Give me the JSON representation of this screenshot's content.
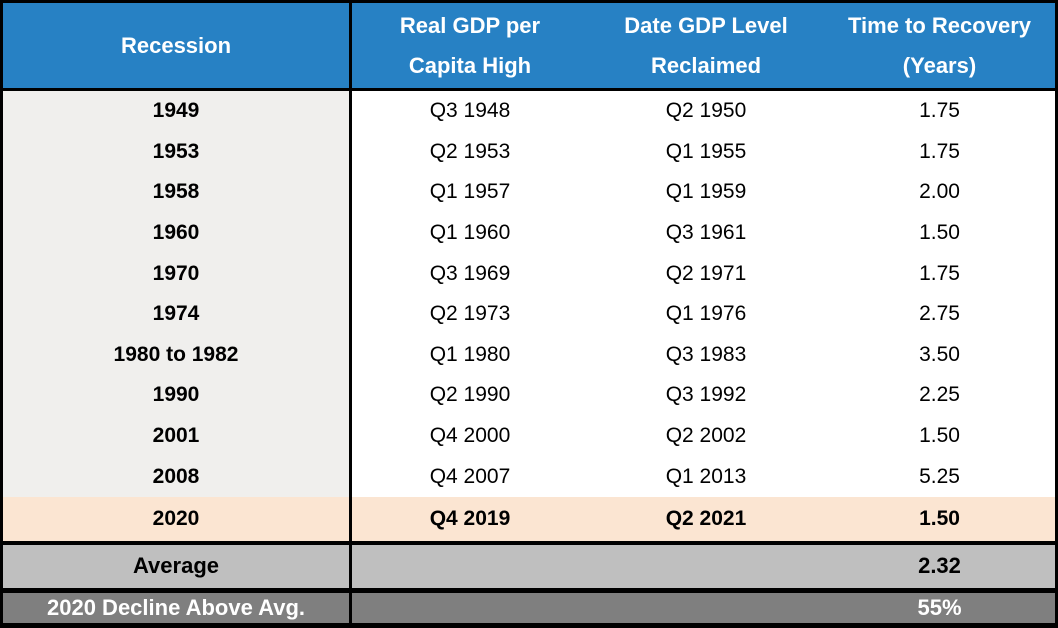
{
  "chart_data": {
    "type": "table",
    "columns": [
      "Recession",
      "Real GDP per Capita High",
      "Date GDP Level Reclaimed",
      "Time to Recovery (Years)"
    ],
    "rows": [
      {
        "recession": "1949",
        "gdp_high": "Q3 1948",
        "reclaimed": "Q2 1950",
        "recovery": "1.75"
      },
      {
        "recession": "1953",
        "gdp_high": "Q2 1953",
        "reclaimed": "Q1 1955",
        "recovery": "1.75"
      },
      {
        "recession": "1958",
        "gdp_high": "Q1 1957",
        "reclaimed": "Q1 1959",
        "recovery": "2.00"
      },
      {
        "recession": "1960",
        "gdp_high": "Q1 1960",
        "reclaimed": "Q3 1961",
        "recovery": "1.50"
      },
      {
        "recession": "1970",
        "gdp_high": "Q3 1969",
        "reclaimed": "Q2 1971",
        "recovery": "1.75"
      },
      {
        "recession": "1974",
        "gdp_high": "Q2 1973",
        "reclaimed": "Q1 1976",
        "recovery": "2.75"
      },
      {
        "recession": "1980 to 1982",
        "gdp_high": "Q1 1980",
        "reclaimed": "Q3 1983",
        "recovery": "3.50"
      },
      {
        "recession": "1990",
        "gdp_high": "Q2 1990",
        "reclaimed": "Q3 1992",
        "recovery": "2.25"
      },
      {
        "recession": "2001",
        "gdp_high": "Q4 2000",
        "reclaimed": "Q2 2002",
        "recovery": "1.50"
      },
      {
        "recession": "2008",
        "gdp_high": "Q4 2007",
        "reclaimed": "Q1 2013",
        "recovery": "5.25"
      },
      {
        "recession": "2020",
        "gdp_high": "Q4 2019",
        "reclaimed": "Q2 2021",
        "recovery": "1.50"
      }
    ],
    "summary": [
      {
        "label": "Average",
        "value": "2.32"
      },
      {
        "label": "2020 Decline Above Avg.",
        "value": "55%"
      }
    ]
  },
  "header": {
    "col1": "Recession",
    "col2_line1": "Real GDP per",
    "col2_line2": "Capita High",
    "col3_line1": "Date GDP Level",
    "col3_line2": "Reclaimed",
    "col4_line1": "Time to Recovery",
    "col4_line2": "(Years)"
  },
  "colors": {
    "header_bg": "#2781c4",
    "header_text": "#ffffff",
    "first_column_bg": "#f0efed",
    "highlight_row_bg": "#fbe5d2",
    "average_row_bg": "#bfbfbf",
    "decline_row_bg": "#7f7f7f",
    "decline_row_text": "#ffffff",
    "border": "#000000"
  }
}
